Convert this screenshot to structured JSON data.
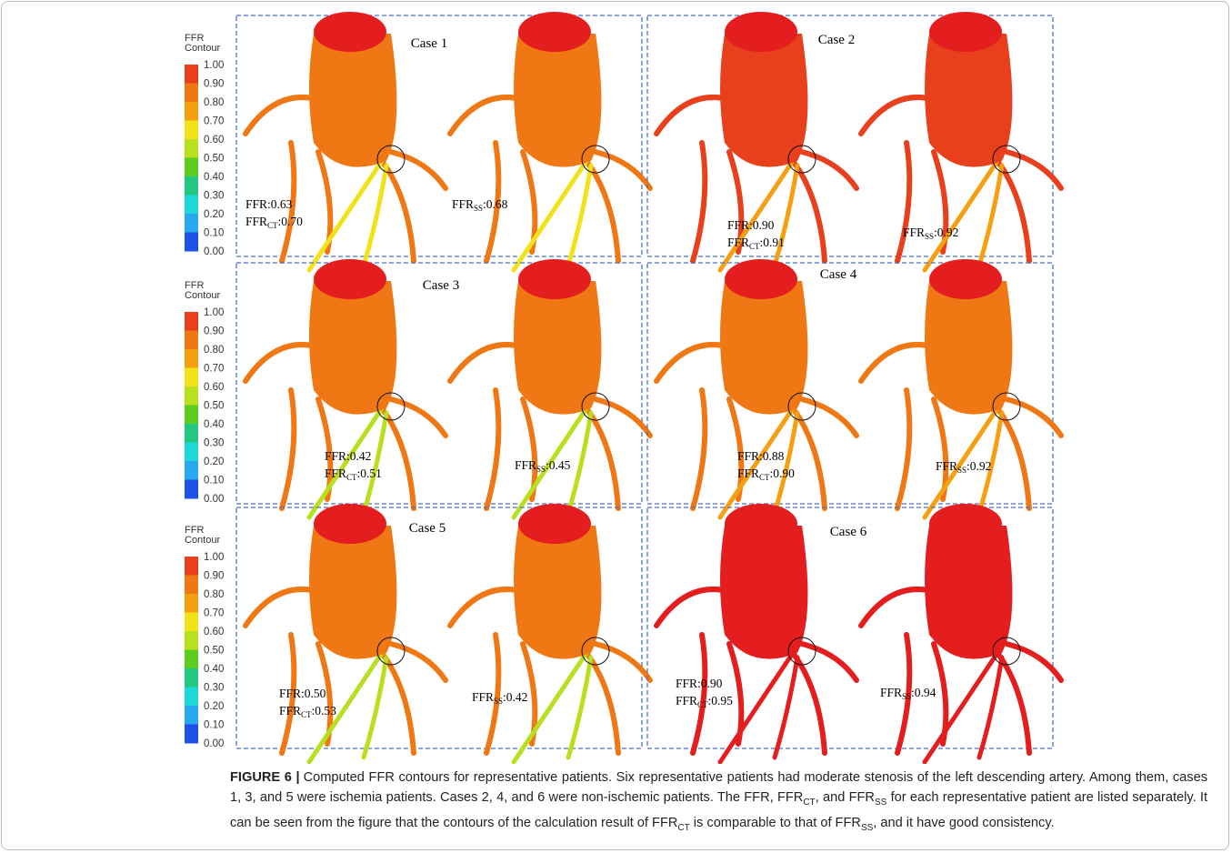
{
  "colorbars": [
    {
      "title": "FFR",
      "subtitle": "Contour",
      "ticks": [
        "1.00",
        "0.90",
        "0.80",
        "0.70",
        "0.60",
        "0.50",
        "0.40",
        "0.30",
        "0.20",
        "0.10",
        "0.00"
      ]
    },
    {
      "title": "FFR",
      "subtitle": "Contour",
      "ticks": [
        "1.00",
        "0.90",
        "0.80",
        "0.70",
        "0.60",
        "0.50",
        "0.40",
        "0.30",
        "0.20",
        "0.10",
        "0.00"
      ]
    },
    {
      "title": "FFR",
      "subtitle": "Contour",
      "ticks": [
        "1.00",
        "0.90",
        "0.80",
        "0.70",
        "0.60",
        "0.50",
        "0.40",
        "0.30",
        "0.20",
        "0.10",
        "0.00"
      ]
    }
  ],
  "colors": [
    "#e8401c",
    "#f07814",
    "#f4a010",
    "#f2e21a",
    "#b9e01e",
    "#5ccc1e",
    "#22c880",
    "#1ed8d8",
    "#28a8f0",
    "#1c50e8"
  ],
  "cases": [
    {
      "title": "Case 1",
      "ffr": "FFR:0.63",
      "ct": [
        "FFR",
        "CT",
        ":0.70"
      ],
      "ss": [
        "FFR",
        "SS",
        ":0.68"
      ]
    },
    {
      "title": "Case 2",
      "ffr": "FFR:0.90",
      "ct": [
        "FFR",
        "CT",
        ":0.91"
      ],
      "ss": [
        "FFR",
        "SS",
        ":0.92"
      ]
    },
    {
      "title": "Case 3",
      "ffr": "FFR:0.42",
      "ct": [
        "FFR",
        "CT",
        ":0.51"
      ],
      "ss": [
        "FFR",
        "SS",
        ":0.45"
      ]
    },
    {
      "title": "Case 4",
      "ffr": "FFR:0.88",
      "ct": [
        "FFR",
        "CT",
        ":0.90"
      ],
      "ss": [
        "FFR",
        "SS",
        ":0.92"
      ]
    },
    {
      "title": "Case 5",
      "ffr": "FFR:0.50",
      "ct": [
        "FFR",
        "CT",
        ":0.53"
      ],
      "ss": [
        "FFR",
        "SS",
        ":0.42"
      ]
    },
    {
      "title": "Case 6",
      "ffr": "FFR:0.90",
      "ct": [
        "FFR",
        "CT",
        ":0.95"
      ],
      "ss": [
        "FFR",
        "SS",
        ":0.94"
      ]
    }
  ],
  "caption": {
    "label": "FIGURE 6 |",
    "text": [
      "Computed FFR contours for representative patients. Six representative patients had moderate stenosis of the left descending artery. Among them, cases 1, 3, and 5 were ischemia patients. Cases 2, 4, and 6 were non-ischemic patients. The FFR, FFR",
      {
        "sub": "CT"
      },
      ", and FFR",
      {
        "sub": "SS"
      },
      " for each representative patient are listed separately. It can be seen from the figure that the contours of the calculation result of FFR",
      {
        "sub": "CT"
      },
      " is comparable to that of FFR",
      {
        "sub": "SS"
      },
      ", and it have good consistency."
    ]
  }
}
